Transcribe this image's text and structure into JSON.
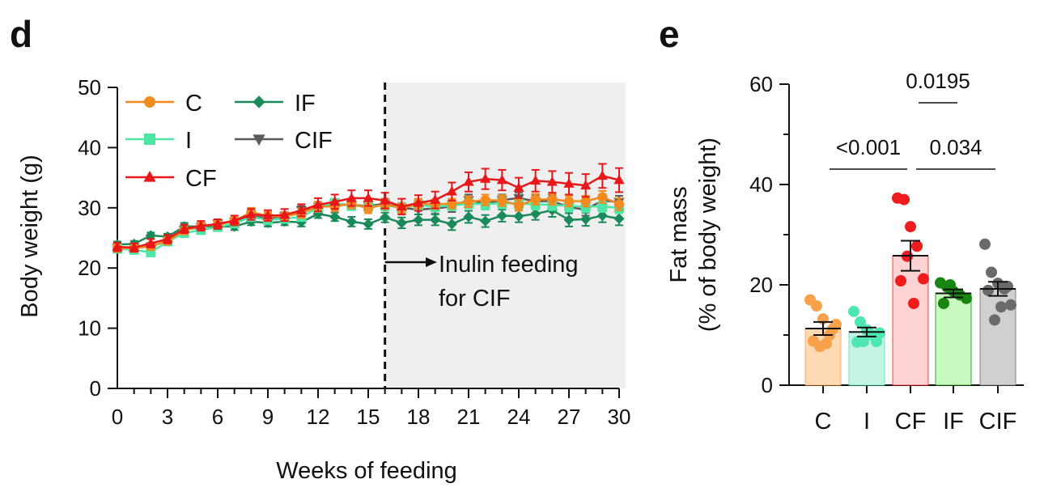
{
  "chart_data": [
    {
      "panel": "d",
      "type": "line",
      "xlabel": "Weeks of feeding",
      "ylabel": "Body weight (g)",
      "xlim": [
        0,
        30
      ],
      "ylim": [
        0,
        50
      ],
      "x_ticks": [
        0,
        3,
        6,
        9,
        12,
        15,
        18,
        21,
        24,
        27,
        30
      ],
      "x_tick_labels": [
        "0",
        "3",
        "6",
        "9",
        "12",
        "15",
        "18",
        "21",
        "24",
        "27",
        "30"
      ],
      "y_ticks": [
        0,
        10,
        20,
        30,
        40,
        50
      ],
      "x": [
        0,
        1,
        2,
        3,
        4,
        5,
        6,
        7,
        8,
        9,
        10,
        11,
        12,
        13,
        14,
        15,
        16,
        17,
        18,
        19,
        20,
        21,
        22,
        23,
        24,
        25,
        26,
        27,
        28,
        29,
        30
      ],
      "shaded_region": [
        16,
        30
      ],
      "grid": false,
      "legend_position": "top-left",
      "annotation": {
        "line1": "Inulin feeding",
        "line2": "for CIF",
        "x": 16
      },
      "series": [
        {
          "name": "C",
          "color": "#f28a1e",
          "marker": "circle",
          "values": [
            23.3,
            23.3,
            23.6,
            24.5,
            26.2,
            27.0,
            27.2,
            27.8,
            29.3,
            28.6,
            28.6,
            29.1,
            30.2,
            30.2,
            30.7,
            29.9,
            30.6,
            29.9,
            30.7,
            30.6,
            30.7,
            31.0,
            31.3,
            31.2,
            30.4,
            31.4,
            31.4,
            31.1,
            31.1,
            31.8,
            30.6
          ],
          "errors": [
            0.6,
            0.6,
            0.6,
            0.6,
            0.6,
            0.6,
            0.6,
            0.6,
            0.7,
            0.7,
            0.7,
            0.8,
            0.8,
            0.8,
            0.8,
            0.8,
            0.8,
            0.8,
            0.8,
            0.8,
            0.8,
            0.9,
            0.9,
            0.9,
            0.9,
            0.9,
            0.9,
            0.9,
            0.9,
            1.0,
            1.0
          ]
        },
        {
          "name": "I",
          "color": "#4ee6a6",
          "marker": "square",
          "values": [
            23.2,
            23.0,
            22.6,
            24.4,
            25.8,
            26.3,
            26.8,
            27.4,
            28.5,
            28.0,
            28.2,
            28.5,
            30.0,
            30.8,
            30.4,
            30.2,
            30.4,
            30.0,
            30.5,
            30.2,
            30.4,
            30.7,
            30.6,
            30.8,
            30.7,
            30.6,
            30.5,
            30.3,
            30.2,
            30.2,
            30.0
          ],
          "errors": [
            0.5,
            0.5,
            0.5,
            0.6,
            0.6,
            0.6,
            0.6,
            0.6,
            0.7,
            0.7,
            0.7,
            0.7,
            0.7,
            0.7,
            0.8,
            0.8,
            0.8,
            0.8,
            0.8,
            0.8,
            0.8,
            0.8,
            0.9,
            0.9,
            0.9,
            0.9,
            0.9,
            0.9,
            0.9,
            0.9,
            0.9
          ]
        },
        {
          "name": "CF",
          "color": "#e8181a",
          "marker": "triangle",
          "values": [
            23.5,
            23.4,
            24.1,
            24.8,
            26.5,
            27.0,
            27.3,
            27.9,
            28.9,
            28.7,
            28.8,
            29.6,
            30.5,
            31.0,
            31.6,
            31.6,
            31.2,
            30.2,
            30.8,
            31.3,
            32.7,
            34.3,
            34.8,
            34.6,
            33.3,
            34.5,
            34.3,
            34.0,
            33.7,
            35.3,
            34.6
          ],
          "errors": [
            0.7,
            0.7,
            0.7,
            0.7,
            0.7,
            0.8,
            0.8,
            0.8,
            0.9,
            0.9,
            1.0,
            1.0,
            1.1,
            1.2,
            1.3,
            1.3,
            1.3,
            1.3,
            1.3,
            1.4,
            1.5,
            1.6,
            1.7,
            1.7,
            1.7,
            1.8,
            1.8,
            1.8,
            1.9,
            2.0,
            2.0
          ]
        },
        {
          "name": "IF",
          "color": "#1a8a5a",
          "marker": "diamond",
          "values": [
            23.9,
            24.0,
            25.4,
            25.2,
            26.9,
            26.9,
            26.9,
            26.9,
            27.7,
            27.5,
            27.7,
            27.6,
            29.0,
            28.5,
            27.7,
            27.3,
            28.4,
            27.5,
            28.0,
            28.0,
            27.3,
            28.5,
            27.8,
            28.7,
            28.6,
            29.0,
            29.6,
            28.0,
            28.1,
            28.7,
            28.2
          ],
          "errors": [
            0.5,
            0.5,
            0.5,
            0.5,
            0.6,
            0.6,
            0.6,
            0.6,
            0.6,
            0.6,
            0.6,
            0.7,
            0.7,
            0.7,
            0.8,
            0.8,
            0.8,
            0.9,
            0.9,
            0.9,
            1.0,
            1.0,
            1.0,
            1.0,
            1.0,
            1.0,
            1.1,
            1.1,
            1.1,
            1.1,
            1.1
          ]
        },
        {
          "name": "CIF",
          "color": "#5a5a5a",
          "marker": "triangle-down",
          "values": [
            23.4,
            23.3,
            23.6,
            24.5,
            26.3,
            26.8,
            27.4,
            27.7,
            28.6,
            28.3,
            28.6,
            29.6,
            30.2,
            30.6,
            30.5,
            30.3,
            30.7,
            30.0,
            29.7,
            29.9,
            30.2,
            31.3,
            30.7,
            31.3,
            31.6,
            31.1,
            31.1,
            30.1,
            29.7,
            31.2,
            31.0
          ],
          "errors": [
            0.6,
            0.6,
            0.6,
            0.6,
            0.6,
            0.6,
            0.6,
            0.6,
            0.7,
            0.7,
            0.7,
            0.7,
            0.8,
            0.8,
            0.8,
            0.8,
            0.8,
            0.8,
            0.8,
            0.9,
            0.9,
            0.9,
            0.9,
            0.9,
            0.9,
            1.0,
            1.0,
            1.0,
            1.0,
            1.0,
            1.0
          ]
        }
      ]
    },
    {
      "panel": "e",
      "type": "bar",
      "ylabel_line1": "Fat mass",
      "ylabel_line2": "(% of body weight)",
      "ylim": [
        0,
        60
      ],
      "y_ticks": [
        0,
        20,
        40,
        60
      ],
      "categories": [
        "C",
        "I",
        "CF",
        "IF",
        "CIF"
      ],
      "values": [
        11.3,
        10.6,
        25.8,
        18.3,
        19.2
      ],
      "errors": [
        1.3,
        0.9,
        3.0,
        0.8,
        1.4
      ],
      "bar_colors": [
        "#fdd9b4",
        "#c4f5e2",
        "#fdd2d2",
        "#c8f9c0",
        "#d0d0d0"
      ],
      "point_colors": [
        "#f7a24a",
        "#4ee6b3",
        "#ee1c1c",
        "#17850f",
        "#6a6a6a"
      ],
      "points": [
        [
          17.0,
          15.8,
          13.2,
          10.0,
          12.1,
          8.8,
          7.7,
          8.3,
          11.2
        ],
        [
          14.7,
          12.6,
          11.0,
          9.9,
          10.4,
          8.6,
          8.7,
          10.3,
          8.7
        ],
        [
          37.3,
          37.0,
          31.6,
          27.7,
          21.2,
          20.8,
          25.7,
          16.3
        ],
        [
          20.4,
          19.6,
          18.7,
          18.0,
          17.3,
          16.3,
          20.0
        ],
        [
          28.1,
          22.5,
          20.3,
          19.2,
          16.0,
          18.9,
          13.0,
          15.6,
          19.7
        ]
      ],
      "comparisons": [
        {
          "label": "<0.001",
          "from": "C",
          "to": "CF"
        },
        {
          "label": "0.034",
          "from": "CF",
          "to": "IF"
        },
        {
          "label": "0.0195",
          "from": "CF",
          "to": "CIF"
        }
      ],
      "grid": false
    }
  ]
}
